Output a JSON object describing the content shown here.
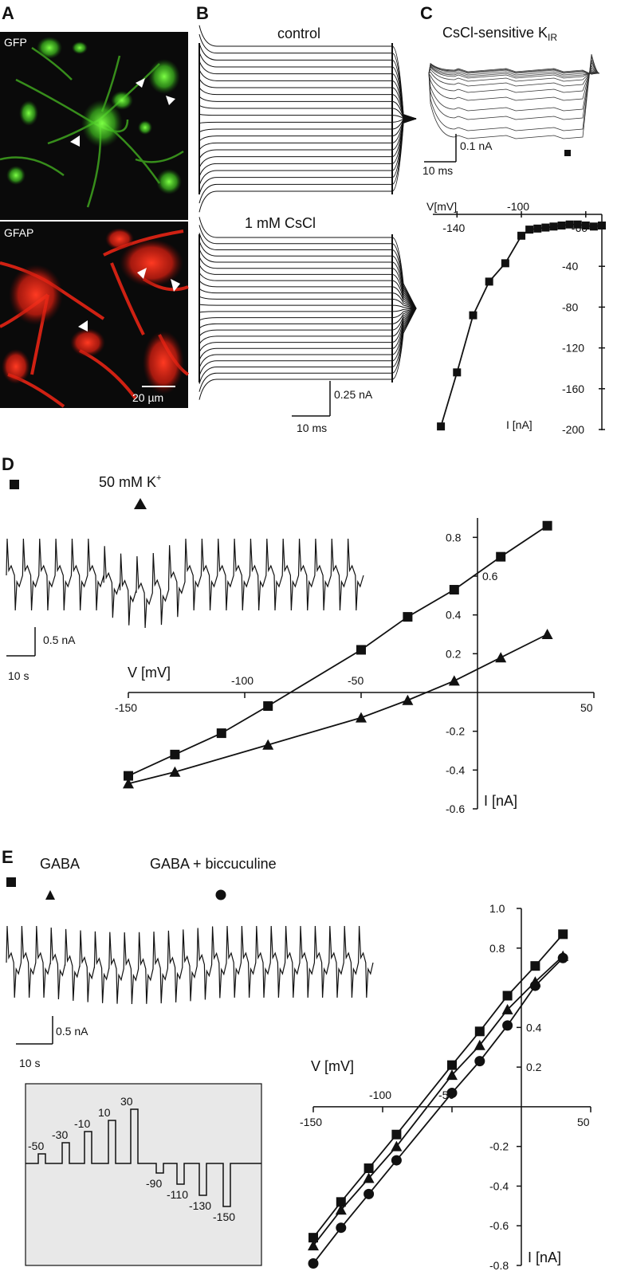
{
  "panels": {
    "a": {
      "letter": "A",
      "top_label": "GFP",
      "bottom_label": "GFAP",
      "scale_bar": "20 µm",
      "colors": {
        "gfp": "#4fd12c",
        "gfap": "#ff2a1a",
        "bg": "#0a0a0a"
      }
    },
    "b": {
      "letter": "B",
      "control_label": "control",
      "cscl_label": "1 mM CsCl",
      "scale_current": "0.25 nA",
      "scale_time": "10 ms"
    },
    "c": {
      "letter": "C",
      "title_main": "CsCl-sensitive K",
      "title_sub": "IR",
      "scale_current": "0.1 nA",
      "scale_time": "10 ms",
      "xlabel": "V[mV]",
      "ylabel": "I [nA]"
    },
    "d": {
      "letter": "D",
      "condition_label": "50 mM K",
      "condition_sup": "+",
      "scale_current": "0.5 nA",
      "scale_time": "10 s",
      "xlabel": "V [mV]",
      "ylabel": "I [nA]"
    },
    "e": {
      "letter": "E",
      "gaba_label": "GABA",
      "gaba_bic_label": "GABA + biccuculine",
      "scale_current": "0.5 nA",
      "scale_time": "10 s",
      "xlabel": "V [mV]",
      "ylabel": "I [nA]",
      "protocol_steps": [
        "-50",
        "-30",
        "-10",
        "10",
        "30",
        "-90",
        "-110",
        "-130",
        "-150"
      ]
    }
  },
  "chart_data": [
    {
      "id": "C",
      "type": "line",
      "xlabel": "V[mV]",
      "ylabel": "I [nA]",
      "xlim": [
        -155,
        -50
      ],
      "ylim": [
        -200,
        0
      ],
      "xticks": [
        -140,
        -100,
        -60
      ],
      "yticks": [
        -40,
        -80,
        -120,
        -160,
        -200
      ],
      "series": [
        {
          "marker": "square",
          "x": [
            -150,
            -140,
            -130,
            -120,
            -110,
            -100,
            -95,
            -90,
            -85,
            -80,
            -75,
            -70,
            -65,
            -60,
            -55,
            -50
          ],
          "y": [
            -197,
            -144,
            -88,
            -55,
            -37,
            -10,
            -4,
            -3,
            -2,
            -1,
            0,
            1,
            1,
            0,
            -1,
            0
          ]
        }
      ]
    },
    {
      "id": "D",
      "type": "line",
      "xlabel": "V [mV]",
      "ylabel": "I [nA]",
      "xlim": [
        -150,
        50
      ],
      "ylim": [
        -0.6,
        0.9
      ],
      "xticks": [
        -150,
        -100,
        -50,
        50
      ],
      "yticks": [
        0.8,
        0.6,
        0.4,
        0.2,
        -0.2,
        -0.4,
        -0.6
      ],
      "series": [
        {
          "marker": "square",
          "x": [
            -150,
            -130,
            -110,
            -90,
            -50,
            -30,
            -10,
            10,
            30
          ],
          "y": [
            -0.43,
            -0.32,
            -0.21,
            -0.07,
            0.22,
            0.39,
            0.53,
            0.7,
            0.86
          ]
        },
        {
          "marker": "triangle",
          "x": [
            -150,
            -130,
            -90,
            -50,
            -30,
            -10,
            10,
            30
          ],
          "y": [
            -0.47,
            -0.41,
            -0.27,
            -0.13,
            -0.04,
            0.06,
            0.18,
            0.3
          ]
        }
      ]
    },
    {
      "id": "E",
      "type": "line",
      "xlabel": "V [mV]",
      "ylabel": "I [nA]",
      "xlim": [
        -150,
        50
      ],
      "ylim": [
        -0.8,
        1.0
      ],
      "xticks": [
        -150,
        -100,
        -50,
        50
      ],
      "yticks": [
        1.0,
        0.8,
        0.4,
        0.2,
        -0.2,
        -0.4,
        -0.6,
        -0.8
      ],
      "series": [
        {
          "marker": "square",
          "x": [
            -150,
            -130,
            -110,
            -90,
            -50,
            -30,
            -10,
            10,
            30
          ],
          "y": [
            -0.66,
            -0.48,
            -0.31,
            -0.14,
            0.21,
            0.38,
            0.56,
            0.71,
            0.87
          ]
        },
        {
          "marker": "triangle",
          "x": [
            -150,
            -130,
            -110,
            -90,
            -50,
            -30,
            -10,
            10,
            30
          ],
          "y": [
            -0.7,
            -0.52,
            -0.36,
            -0.2,
            0.16,
            0.31,
            0.49,
            0.63,
            0.76
          ]
        },
        {
          "marker": "circle",
          "x": [
            -150,
            -130,
            -110,
            -90,
            -50,
            -30,
            -10,
            10,
            30
          ],
          "y": [
            -0.79,
            -0.61,
            -0.44,
            -0.27,
            0.07,
            0.23,
            0.41,
            0.61,
            0.75
          ]
        }
      ]
    }
  ]
}
